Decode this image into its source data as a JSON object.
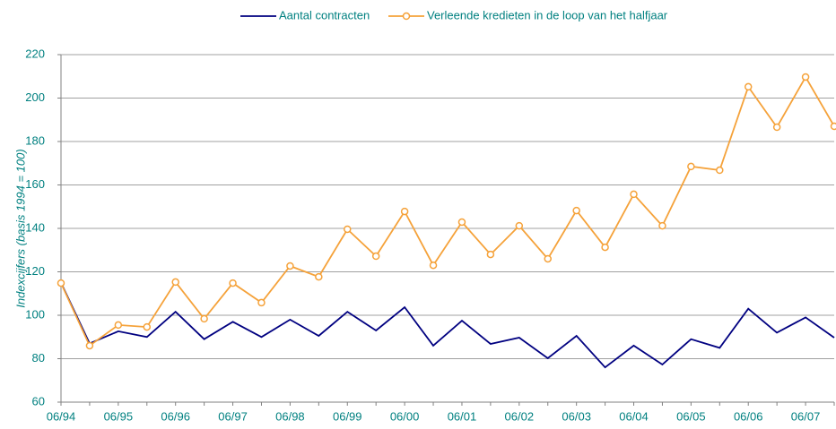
{
  "chart_data": {
    "type": "line",
    "y_label": "Indexcijfers (basis 1994 = 100)",
    "categories": [
      "06/94",
      null,
      "06/95",
      null,
      "06/96",
      null,
      "06/97",
      null,
      "06/98",
      null,
      "06/99",
      null,
      "06/00",
      null,
      "06/01",
      null,
      "06/02",
      null,
      "06/03",
      null,
      "06/04",
      null,
      "06/05",
      null,
      "06/06",
      null,
      "06/07",
      null
    ],
    "series": [
      {
        "name": "Aantal contracten",
        "color": "#000080",
        "marker": false,
        "values": [
          115,
          87,
          92.6,
          90,
          101.6,
          89,
          97,
          90,
          98,
          90.5,
          101.6,
          93,
          103.7,
          86,
          97.5,
          86.8,
          89.7,
          80.2,
          90.5,
          76,
          86,
          77.3,
          89,
          85,
          103,
          92,
          99,
          89.7
        ]
      },
      {
        "name": "Verleende kredieten in de loop van het halfjaar",
        "color": "#f5a23a",
        "marker": true,
        "values": [
          114.8,
          86,
          95.5,
          94.6,
          115.3,
          98.4,
          114.8,
          105.8,
          122.7,
          117.7,
          139.6,
          127.2,
          147.8,
          123,
          142.9,
          128,
          141.2,
          126,
          148.2,
          131.3,
          155.7,
          141.2,
          168.5,
          166.8,
          205.2,
          186.6,
          209.7,
          187
        ]
      }
    ],
    "ylim": [
      60,
      220
    ],
    "yticks": [
      60,
      80,
      100,
      120,
      140,
      160,
      180,
      200,
      220
    ],
    "grid": true,
    "legend": "top"
  }
}
